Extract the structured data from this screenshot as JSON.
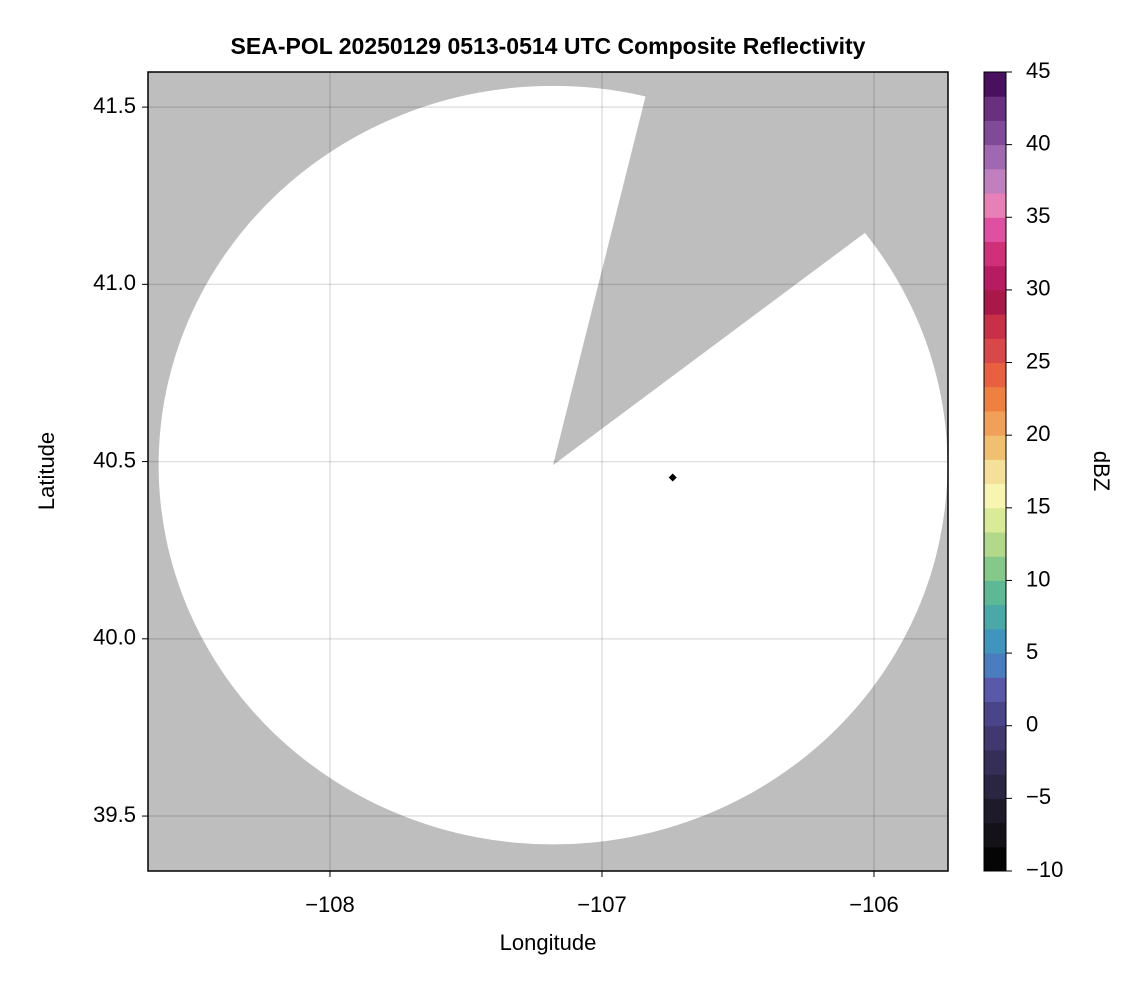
{
  "chart_data": {
    "type": "radar_map",
    "title": "SEA-POL 20250129 0513-0514 UTC Composite Reflectivity",
    "xlabel": "Longitude",
    "ylabel": "Latitude",
    "xlim": [
      -108.669,
      -105.728
    ],
    "ylim": [
      39.345,
      41.599
    ],
    "xticks": [
      {
        "value": -108,
        "label": "−108"
      },
      {
        "value": -107,
        "label": "−107"
      },
      {
        "value": -106,
        "label": "−106"
      }
    ],
    "yticks": [
      39.5,
      {
        "value": 40,
        "label": "40.0"
      },
      40.5,
      {
        "value": 41,
        "label": "41.0"
      },
      41.5
    ],
    "grid": true,
    "background_color": "#bebebe",
    "coverage": {
      "center_lon": -107.18,
      "center_lat": 40.49,
      "radius_lon": 1.45,
      "radius_lat": 1.07,
      "color": "#ffffff"
    },
    "blocked_sector": {
      "lon": [
        -107.18,
        -106.84,
        -106.06
      ],
      "lat": [
        40.49,
        41.53,
        41.13
      ],
      "color": "#bebebe"
    },
    "marker": {
      "lon": -106.74,
      "lat": 40.455,
      "color": "#000000"
    },
    "colorbar": {
      "label": "dBZ",
      "lim": [
        -10,
        45
      ],
      "ticks": [
        {
          "value": -10,
          "label": "−10"
        },
        {
          "value": -5,
          "label": "−5"
        },
        0,
        5,
        10,
        15,
        20,
        25,
        30,
        35,
        40,
        45
      ],
      "colors": [
        "#050505",
        "#141218",
        "#1e1a2a",
        "#2a2540",
        "#352f58",
        "#40386e",
        "#4a4488",
        "#5a58a8",
        "#4a7cc0",
        "#3f95bd",
        "#4aa8a6",
        "#5db896",
        "#84c88a",
        "#b2d88a",
        "#d9eb96",
        "#f7f5b0",
        "#f5e09a",
        "#f0c070",
        "#f0a058",
        "#ee8040",
        "#e86040",
        "#d84848",
        "#c83048",
        "#a81848",
        "#b81c60",
        "#d03078",
        "#e050a0",
        "#e880b8",
        "#c080c0",
        "#a068b0",
        "#804a98",
        "#6a3080",
        "#4a1060"
      ]
    }
  }
}
